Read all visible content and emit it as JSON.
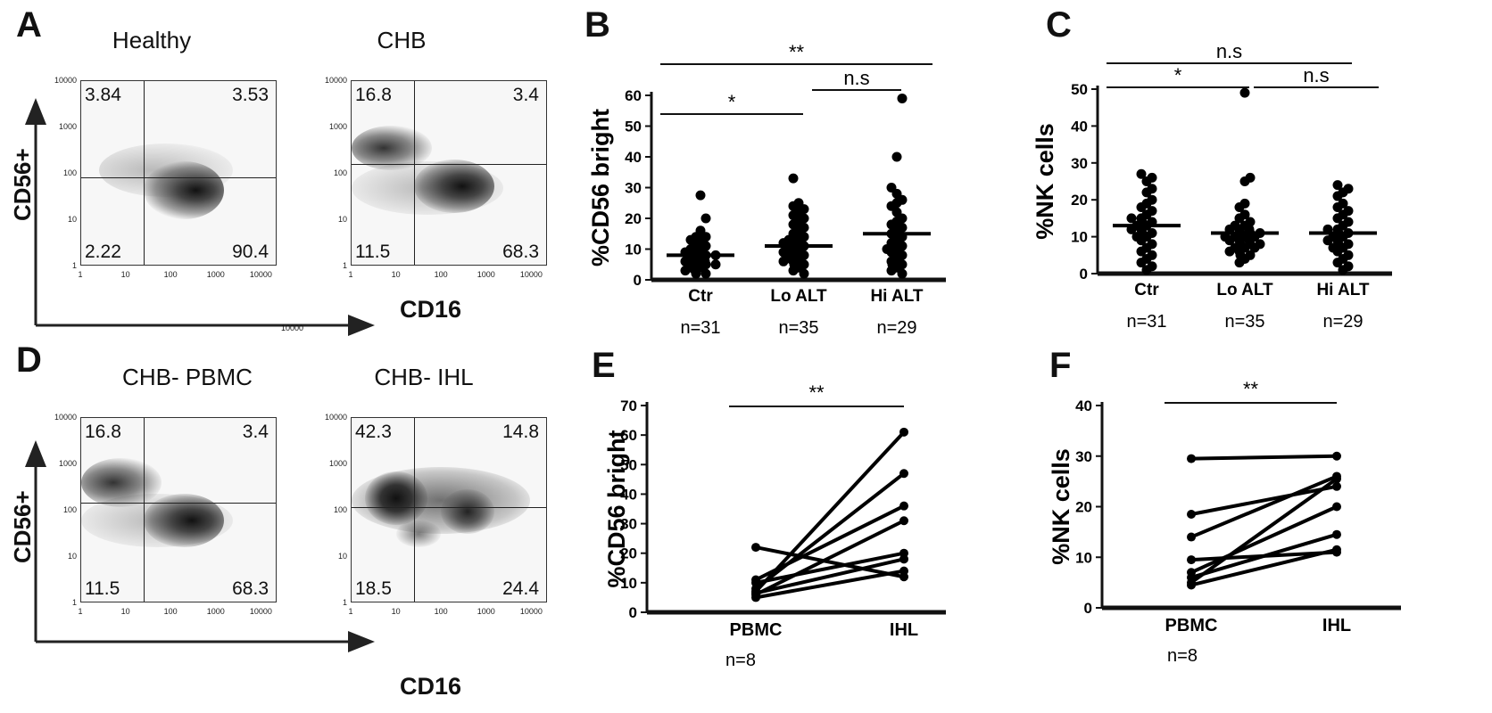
{
  "panel_letters": [
    "A",
    "B",
    "C",
    "D",
    "E",
    "F"
  ],
  "facs": [
    {
      "id": "A1",
      "title": "Healthy",
      "quadrants": {
        "ul": "3.84",
        "ur": "3.53",
        "ll": "2.22",
        "lr": "90.4"
      }
    },
    {
      "id": "A2",
      "title": "CHB",
      "quadrants": {
        "ul": "16.8",
        "ur": "3.4",
        "ll": "11.5",
        "lr": "68.3"
      }
    },
    {
      "id": "D1",
      "title": "CHB- PBMC",
      "quadrants": {
        "ul": "16.8",
        "ur": "3.4",
        "ll": "11.5",
        "lr": "68.3"
      }
    },
    {
      "id": "D2",
      "title": "CHB- IHL",
      "quadrants": {
        "ul": "42.3",
        "ur": "14.8",
        "ll": "18.5",
        "lr": "24.4"
      }
    }
  ],
  "facs_ticks": [
    "1",
    "10",
    "100",
    "1000",
    "10000"
  ],
  "facs_axes": {
    "y": "CD56+",
    "x": "CD16"
  },
  "stray_label": "10000",
  "chart_data": [
    {
      "panel": "B",
      "type": "scatter",
      "ylabel": "%CD56 bright",
      "ylim": [
        0,
        60
      ],
      "yticks": [
        "0",
        "10",
        "20",
        "30",
        "40",
        "50",
        "60"
      ],
      "categories": [
        "Ctr",
        "Lo ALT",
        "Hi ALT"
      ],
      "n_labels": [
        "n=31",
        "n=35",
        "n=29"
      ],
      "means": [
        8,
        11,
        15
      ],
      "series": [
        {
          "values": [
            27.5,
            20,
            16,
            14,
            14,
            13,
            13,
            12,
            11,
            11,
            10,
            10,
            9,
            9,
            8,
            8,
            8,
            7,
            7,
            6,
            6,
            6,
            5,
            5,
            5,
            4,
            4,
            3,
            3,
            2,
            2
          ]
        },
        {
          "values": [
            33,
            25,
            24,
            23,
            22,
            21,
            20,
            19,
            18,
            17,
            16,
            15,
            14,
            14,
            13,
            13,
            12,
            12,
            11,
            11,
            10,
            10,
            9,
            9,
            8,
            8,
            7,
            7,
            6,
            6,
            5,
            5,
            4,
            3,
            2
          ]
        },
        {
          "values": [
            59,
            40,
            30,
            28,
            26,
            25,
            24,
            22,
            20,
            19,
            18,
            17,
            16,
            15,
            14,
            13,
            12,
            11,
            10,
            10,
            9,
            8,
            7,
            6,
            5,
            5,
            4,
            3,
            2
          ]
        }
      ],
      "significance": [
        {
          "label": "**",
          "from": 0,
          "to": 2
        },
        {
          "label": "*",
          "from": 0,
          "to": 1
        },
        {
          "label": "n.s",
          "from": 1,
          "to": 2
        }
      ]
    },
    {
      "panel": "C",
      "type": "scatter",
      "ylabel": "%NK cells",
      "ylim": [
        0,
        50
      ],
      "yticks": [
        "0",
        "10",
        "20",
        "30",
        "40",
        "50"
      ],
      "categories": [
        "Ctr",
        "Lo ALT",
        "Hi ALT"
      ],
      "n_labels": [
        "n=31",
        "n=35",
        "n=29"
      ],
      "means": [
        13,
        11,
        11
      ],
      "series": [
        {
          "values": [
            27,
            26,
            25,
            23,
            22,
            20,
            19,
            18,
            17,
            16,
            15,
            15,
            14,
            14,
            13,
            13,
            12,
            12,
            11,
            11,
            10,
            10,
            9,
            8,
            7,
            6,
            5,
            4,
            3,
            2,
            1
          ]
        },
        {
          "values": [
            49,
            26,
            25,
            19,
            18,
            16,
            15,
            14,
            13,
            13,
            12,
            12,
            12,
            11,
            11,
            11,
            10,
            10,
            10,
            10,
            9,
            9,
            9,
            8,
            8,
            8,
            7,
            7,
            7,
            6,
            6,
            5,
            5,
            4,
            3
          ]
        },
        {
          "values": [
            24,
            23,
            22,
            21,
            19,
            18,
            17,
            16,
            15,
            14,
            13,
            12,
            12,
            11,
            11,
            10,
            10,
            9,
            9,
            8,
            8,
            7,
            7,
            6,
            5,
            4,
            3,
            2,
            1
          ]
        }
      ],
      "significance": [
        {
          "label": "n.s",
          "from": 0,
          "to": 2
        },
        {
          "label": "*",
          "from": 0,
          "to": 1
        },
        {
          "label": "n.s",
          "from": 1,
          "to": 2
        }
      ]
    },
    {
      "panel": "E",
      "type": "line",
      "ylabel": "%CD56 bright",
      "ylim": [
        0,
        70
      ],
      "yticks": [
        "0",
        "10",
        "20",
        "30",
        "40",
        "50",
        "60",
        "70"
      ],
      "categories": [
        "PBMC",
        "IHL"
      ],
      "n_label": "n=8",
      "pairs": [
        [
          22,
          12
        ],
        [
          11,
          36
        ],
        [
          10,
          20
        ],
        [
          7,
          61
        ],
        [
          6.5,
          18
        ],
        [
          6,
          31
        ],
        [
          5,
          14
        ],
        [
          8,
          47
        ]
      ],
      "significance": [
        {
          "label": "**",
          "from": 0,
          "to": 1
        }
      ]
    },
    {
      "panel": "F",
      "type": "line",
      "ylabel": "%NK cells",
      "ylim": [
        0,
        40
      ],
      "yticks": [
        "0",
        "10",
        "20",
        "30",
        "40"
      ],
      "categories": [
        "PBMC",
        "IHL"
      ],
      "n_label": "n=8",
      "pairs": [
        [
          29.5,
          30
        ],
        [
          18.5,
          24
        ],
        [
          14,
          26
        ],
        [
          9.5,
          11
        ],
        [
          7,
          20
        ],
        [
          6,
          14.5
        ],
        [
          5,
          25.5
        ],
        [
          4.5,
          11.5
        ]
      ],
      "significance": [
        {
          "label": "**",
          "from": 0,
          "to": 1
        }
      ]
    }
  ]
}
